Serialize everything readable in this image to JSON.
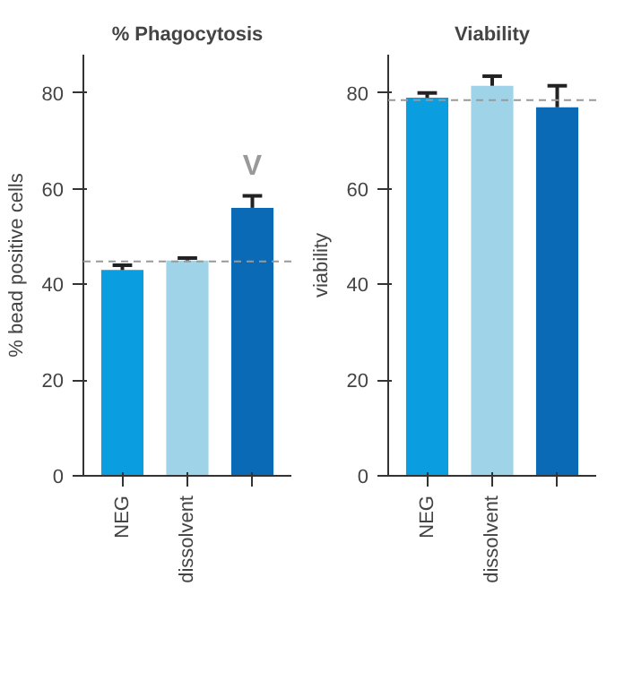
{
  "chart_data": [
    {
      "type": "bar",
      "title": "% Phagocytosis",
      "ylabel": "% bead positive cells",
      "categories": [
        "NEG",
        "dissolvent",
        null
      ],
      "values": [
        43,
        45,
        56
      ],
      "colors": [
        "#0a9ee0",
        "#9fd4e8",
        "#0a6ab5"
      ],
      "errors": [
        [
          43,
          44
        ],
        [
          45,
          45.5
        ],
        [
          56,
          58.5
        ]
      ],
      "ylim": [
        0,
        88
      ],
      "yticks": [
        0,
        20,
        40,
        60,
        80
      ],
      "grid": false,
      "ref_lines": [
        {
          "axis": "y",
          "value": 44.8,
          "line_style": "dashed",
          "color": "#999999"
        }
      ],
      "annotations": [
        "V"
      ]
    },
    {
      "type": "bar",
      "title": "Viability",
      "ylabel": "viability",
      "categories": [
        "NEG",
        "dissolvent",
        null
      ],
      "values": [
        79,
        81.5,
        77
      ],
      "colors": [
        "#0a9ee0",
        "#9fd4e8",
        "#0a6ab5"
      ],
      "errors": [
        [
          79,
          80
        ],
        [
          81.5,
          83.5
        ],
        [
          77,
          81.5
        ]
      ],
      "ylim": [
        0,
        88
      ],
      "yticks": [
        0,
        20,
        40,
        60,
        80
      ],
      "grid": false,
      "ref_lines": [
        {
          "axis": "y",
          "value": 78.5,
          "line_style": "dashed",
          "color": "#999999"
        }
      ]
    }
  ]
}
